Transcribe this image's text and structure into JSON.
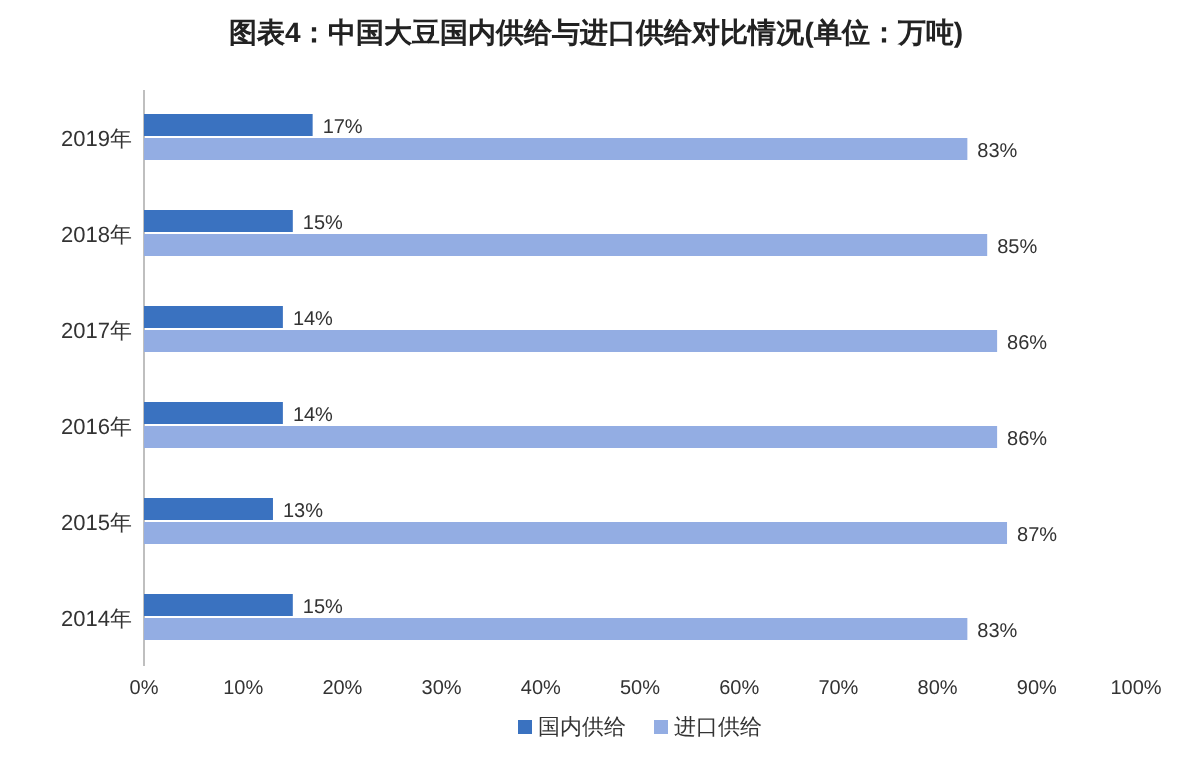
{
  "chart_data": {
    "type": "bar",
    "orientation": "horizontal",
    "title": "图表4：中国大豆国内供给与进口供给对比情况(单位：万吨)",
    "categories": [
      "2019年",
      "2018年",
      "2017年",
      "2016年",
      "2015年",
      "2014年"
    ],
    "series": [
      {
        "name": "国内供给",
        "color": "#3a72c0",
        "values": [
          17,
          15,
          14,
          14,
          13,
          15
        ],
        "value_labels": [
          "17%",
          "15%",
          "14%",
          "14%",
          "13%",
          "15%"
        ]
      },
      {
        "name": "进口供给",
        "color": "#93ade3",
        "values": [
          83,
          85,
          86,
          86,
          87,
          83
        ],
        "value_labels": [
          "83%",
          "85%",
          "86%",
          "86%",
          "87%",
          "83%"
        ]
      }
    ],
    "xlim": [
      0,
      100
    ],
    "xticks": [
      {
        "value": 0,
        "label": "0%"
      },
      {
        "value": 10,
        "label": "10%"
      },
      {
        "value": 20,
        "label": "20%"
      },
      {
        "value": 30,
        "label": "30%"
      },
      {
        "value": 40,
        "label": "40%"
      },
      {
        "value": 50,
        "label": "50%"
      },
      {
        "value": 60,
        "label": "60%"
      },
      {
        "value": 70,
        "label": "70%"
      },
      {
        "value": 80,
        "label": "80%"
      },
      {
        "value": 90,
        "label": "90%"
      },
      {
        "value": 100,
        "label": "100%"
      }
    ],
    "legend": "bottom",
    "grid": false
  }
}
